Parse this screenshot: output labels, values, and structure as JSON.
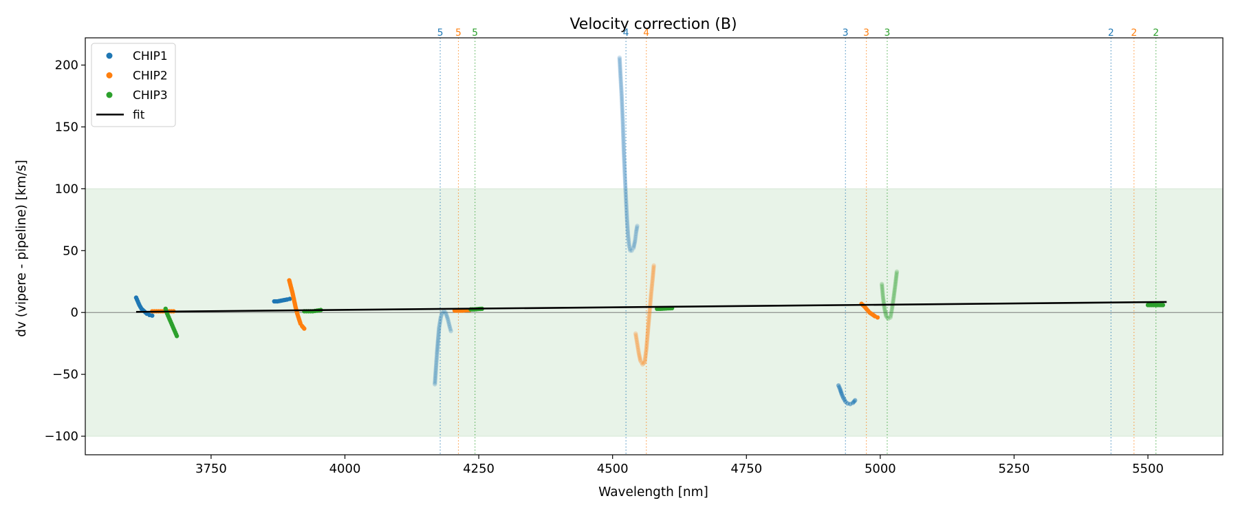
{
  "chart_data": {
    "type": "scatter",
    "title": "Velocity correction (B)",
    "xlabel": "Wavelength [nm]",
    "ylabel": "dv (vipere - pipeline) [km/s]",
    "xlim": [
      3515,
      5640
    ],
    "ylim": [
      -115,
      222
    ],
    "xticks": [
      3750,
      4000,
      4250,
      4500,
      4750,
      5000,
      5250,
      5500
    ],
    "yticks": [
      -100,
      -50,
      0,
      50,
      100,
      150,
      200
    ],
    "band": [
      -100,
      100
    ],
    "zero_line": 0,
    "colors": {
      "CHIP1": "#1f77b4",
      "CHIP2": "#ff7f0e",
      "CHIP3": "#2ca02c",
      "fit": "#000000",
      "band": "#e8f3e8"
    },
    "legend": {
      "position": "upper-left",
      "entries": [
        {
          "label": "CHIP1",
          "kind": "marker",
          "color": "#1f77b4"
        },
        {
          "label": "CHIP2",
          "kind": "marker",
          "color": "#ff7f0e"
        },
        {
          "label": "CHIP3",
          "kind": "marker",
          "color": "#2ca02c"
        },
        {
          "label": "fit",
          "kind": "line",
          "color": "#000000"
        }
      ]
    },
    "fit": {
      "x": [
        3610,
        5535
      ],
      "y": [
        0.5,
        8.5
      ]
    },
    "order_lines": [
      {
        "x": 4178,
        "label": "5",
        "chip": "CHIP1"
      },
      {
        "x": 4212,
        "label": "5",
        "chip": "CHIP2"
      },
      {
        "x": 4243,
        "label": "5",
        "chip": "CHIP3"
      },
      {
        "x": 4525,
        "label": "4",
        "chip": "CHIP1"
      },
      {
        "x": 4563,
        "label": "4",
        "chip": "CHIP2"
      },
      {
        "x": 4935,
        "label": "3",
        "chip": "CHIP1"
      },
      {
        "x": 4974,
        "label": "3",
        "chip": "CHIP2"
      },
      {
        "x": 5013,
        "label": "3",
        "chip": "CHIP3"
      },
      {
        "x": 5431,
        "label": "2",
        "chip": "CHIP1"
      },
      {
        "x": 5474,
        "label": "2",
        "chip": "CHIP2"
      },
      {
        "x": 5515,
        "label": "2",
        "chip": "CHIP3"
      }
    ],
    "series": [
      {
        "name": "CHIP1",
        "segments": [
          {
            "alpha": 1.0,
            "points": [
              [
                3610,
                12
              ],
              [
                3613,
                9
              ],
              [
                3616,
                6
              ],
              [
                3620,
                3
              ],
              [
                3625,
                1
              ],
              [
                3630,
                -1
              ],
              [
                3635,
                -2
              ],
              [
                3640,
                -2.5
              ]
            ]
          },
          {
            "alpha": 1.0,
            "points": [
              [
                3868,
                9
              ],
              [
                3874,
                9
              ],
              [
                3880,
                9.5
              ],
              [
                3886,
                10
              ],
              [
                3892,
                10.5
              ],
              [
                3897,
                11
              ]
            ]
          },
          {
            "alpha": 0.25,
            "points": [
              [
                4168,
                -58
              ],
              [
                4170,
                -45
              ],
              [
                4172,
                -33
              ],
              [
                4174,
                -22
              ],
              [
                4176,
                -12
              ],
              [
                4179,
                -4
              ],
              [
                4182,
                0
              ],
              [
                4185,
                1
              ],
              [
                4188,
                0
              ],
              [
                4192,
                -5
              ],
              [
                4196,
                -12
              ],
              [
                4198,
                -15
              ]
            ]
          },
          {
            "alpha": 0.22,
            "points": [
              [
                4513,
                206
              ],
              [
                4515,
                190
              ],
              [
                4517,
                175
              ],
              [
                4519,
                155
              ],
              [
                4521,
                130
              ],
              [
                4523,
                110
              ],
              [
                4525,
                92
              ],
              [
                4527,
                75
              ],
              [
                4529,
                62
              ],
              [
                4531,
                54
              ],
              [
                4533,
                50
              ],
              [
                4536,
                50
              ],
              [
                4539,
                52
              ],
              [
                4542,
                58
              ],
              [
                4544,
                65
              ],
              [
                4546,
                70
              ]
            ]
          },
          {
            "alpha": 0.55,
            "points": [
              [
                4922,
                -59
              ],
              [
                4925,
                -62
              ],
              [
                4928,
                -66
              ],
              [
                4931,
                -69
              ],
              [
                4935,
                -72
              ],
              [
                4939,
                -73.5
              ],
              [
                4944,
                -74
              ],
              [
                4949,
                -73
              ],
              [
                4953,
                -71
              ]
            ]
          }
        ]
      },
      {
        "name": "CHIP2",
        "segments": [
          {
            "alpha": 1.0,
            "points": [
              [
                3640,
                1
              ],
              [
                3648,
                1
              ],
              [
                3656,
                1
              ],
              [
                3664,
                1
              ],
              [
                3672,
                1
              ],
              [
                3680,
                1
              ]
            ]
          },
          {
            "alpha": 1.0,
            "points": [
              [
                3896,
                26
              ],
              [
                3899,
                21
              ],
              [
                3902,
                16
              ],
              [
                3905,
                10
              ],
              [
                3908,
                4
              ],
              [
                3911,
                -1
              ],
              [
                3914,
                -5
              ],
              [
                3917,
                -9
              ],
              [
                3920,
                -11
              ],
              [
                3924,
                -13
              ]
            ]
          },
          {
            "alpha": 1.0,
            "points": [
              [
                4205,
                1.5
              ],
              [
                4212,
                1.5
              ],
              [
                4219,
                1.5
              ],
              [
                4226,
                1.8
              ],
              [
                4233,
                2
              ]
            ]
          },
          {
            "alpha": 0.25,
            "points": [
              [
                4543,
                -17
              ],
              [
                4546,
                -25
              ],
              [
                4549,
                -33
              ],
              [
                4552,
                -39
              ],
              [
                4556,
                -42
              ],
              [
                4560,
                -40
              ],
              [
                4563,
                -30
              ],
              [
                4566,
                -15
              ],
              [
                4569,
                0
              ],
              [
                4572,
                15
              ],
              [
                4575,
                28
              ],
              [
                4577,
                38
              ]
            ]
          },
          {
            "alpha": 1.0,
            "points": [
              [
                4965,
                7
              ],
              [
                4970,
                5
              ],
              [
                4975,
                2.5
              ],
              [
                4980,
                0
              ],
              [
                4985,
                -1.5
              ],
              [
                4990,
                -3
              ],
              [
                4995,
                -4
              ]
            ]
          }
        ]
      },
      {
        "name": "CHIP3",
        "segments": [
          {
            "alpha": 1.0,
            "points": [
              [
                3665,
                3
              ],
              [
                3668,
                -1
              ],
              [
                3671,
                -4
              ],
              [
                3674,
                -7
              ],
              [
                3677,
                -10
              ],
              [
                3680,
                -13
              ],
              [
                3683,
                -16
              ],
              [
                3686,
                -19
              ]
            ]
          },
          {
            "alpha": 1.0,
            "points": [
              [
                3924,
                1
              ],
              [
                3932,
                1
              ],
              [
                3940,
                1
              ],
              [
                3948,
                1.5
              ],
              [
                3955,
                2
              ]
            ]
          },
          {
            "alpha": 1.0,
            "points": [
              [
                4235,
                2.5
              ],
              [
                4242,
                2.5
              ],
              [
                4249,
                2.8
              ],
              [
                4256,
                3
              ]
            ]
          },
          {
            "alpha": 1.0,
            "points": [
              [
                4583,
                3
              ],
              [
                4590,
                3
              ],
              [
                4597,
                3.2
              ],
              [
                4604,
                3.4
              ],
              [
                4611,
                3.5
              ]
            ]
          },
          {
            "alpha": 0.25,
            "points": [
              [
                5003,
                23
              ],
              [
                5005,
                13
              ],
              [
                5008,
                3
              ],
              [
                5011,
                -3
              ],
              [
                5015,
                -5
              ],
              [
                5019,
                -4
              ],
              [
                5022,
                3
              ],
              [
                5025,
                12
              ],
              [
                5028,
                22
              ],
              [
                5031,
                33
              ]
            ]
          },
          {
            "alpha": 1.0,
            "points": [
              [
                5500,
                6
              ],
              [
                5507,
                6
              ],
              [
                5514,
                6
              ],
              [
                5521,
                6
              ],
              [
                5528,
                6
              ]
            ]
          }
        ]
      }
    ]
  }
}
